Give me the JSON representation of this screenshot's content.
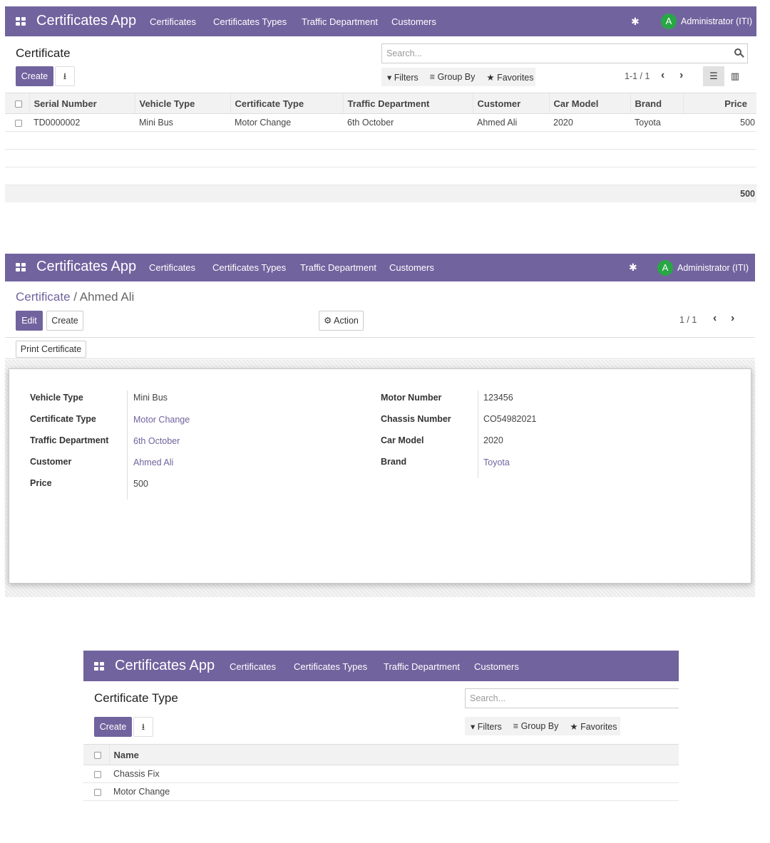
{
  "nav": {
    "brand": "Certificates App",
    "menu": [
      "Certificates",
      "Certificates Types",
      "Traffic Department",
      "Customers"
    ],
    "avatar_letter": "A",
    "user": "Administrator (ITI)"
  },
  "list1": {
    "title": "Certificate",
    "create": "Create",
    "search_placeholder": "Search...",
    "filters": "Filters",
    "group_by": "Group By",
    "favorites": "Favorites",
    "pager": "1-1 / 1",
    "columns": [
      "Serial Number",
      "Vehicle Type",
      "Certificate Type",
      "Traffic Department",
      "Customer",
      "Car Model",
      "Brand",
      "Price"
    ],
    "rows": [
      {
        "serial": "TD0000002",
        "vehicle_type": "Mini Bus",
        "certificate_type": "Motor Change",
        "traffic_department": "6th October",
        "customer": "Ahmed Ali",
        "car_model": "2020",
        "brand": "Toyota",
        "price": "500"
      }
    ],
    "total": "500"
  },
  "form": {
    "breadcrumb_parent": "Certificate",
    "breadcrumb_sep": " / ",
    "breadcrumb_current": "Ahmed Ali",
    "edit": "Edit",
    "create": "Create",
    "action": "Action",
    "pager": "1 / 1",
    "print": "Print Certificate",
    "left_fields": [
      {
        "label": "Vehicle Type",
        "value": "Mini Bus",
        "link": false
      },
      {
        "label": "Certificate Type",
        "value": "Motor Change",
        "link": true
      },
      {
        "label": "Traffic Department",
        "value": "6th October",
        "link": true
      },
      {
        "label": "Customer",
        "value": "Ahmed Ali",
        "link": true
      },
      {
        "label": "Price",
        "value": "500",
        "link": false
      }
    ],
    "right_fields": [
      {
        "label": "Motor Number",
        "value": "123456",
        "link": false
      },
      {
        "label": "Chassis Number",
        "value": "CO54982021",
        "link": false
      },
      {
        "label": "Car Model",
        "value": "2020",
        "link": false
      },
      {
        "label": "Brand",
        "value": "Toyota",
        "link": true
      }
    ]
  },
  "list2": {
    "title": "Certificate Type",
    "create": "Create",
    "search_placeholder": "Search...",
    "filters": "Filters",
    "group_by": "Group By",
    "favorites": "Favorites",
    "column": "Name",
    "rows": [
      "Chassis Fix",
      "Motor Change"
    ]
  },
  "colors": {
    "brand": "#71639e",
    "avatar": "#28a745"
  }
}
